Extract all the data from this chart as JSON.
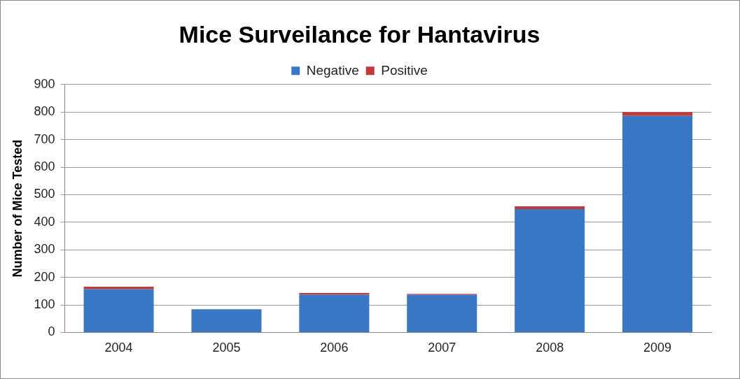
{
  "chart_data": {
    "type": "bar",
    "title": "Mice Surveilance for Hantavirus",
    "ylabel": "Number of Mice Tested",
    "categories": [
      "2004",
      "2005",
      "2006",
      "2007",
      "2008",
      "2009"
    ],
    "stacked": true,
    "series": [
      {
        "name": "Negative",
        "color": "#3a77c4",
        "values": [
          157,
          84,
          137,
          137,
          448,
          786
        ]
      },
      {
        "name": "Positive",
        "color": "#c0393b",
        "values": [
          9,
          0,
          6,
          3,
          10,
          14
        ]
      }
    ],
    "ylim": [
      0,
      900
    ],
    "yticks": [
      0,
      100,
      200,
      300,
      400,
      500,
      600,
      700,
      800,
      900
    ],
    "grid": "y",
    "legend": "top"
  }
}
